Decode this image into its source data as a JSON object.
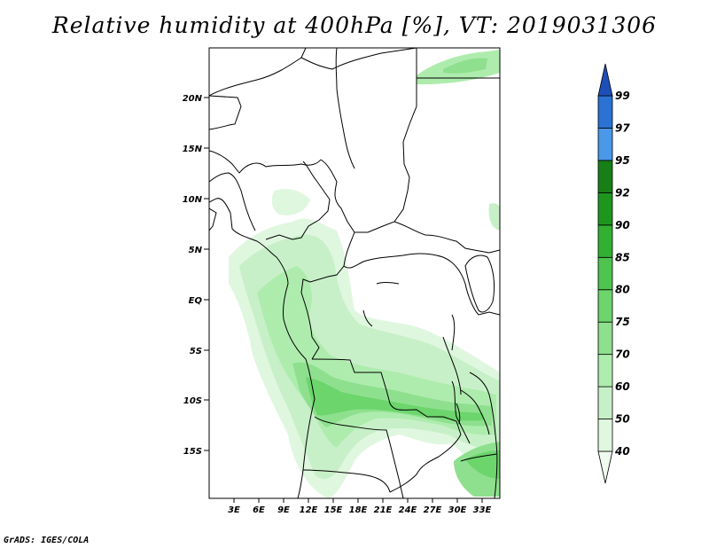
{
  "title": "Relative humidity at 400hPa [%], VT: 2019031306",
  "credit": "GrADS: IGES/COLA",
  "map": {
    "lat_labels": [
      "20N",
      "15N",
      "10N",
      "5N",
      "EQ",
      "5S",
      "10S",
      "15S"
    ],
    "lon_labels": [
      "3E",
      "6E",
      "9E",
      "12E",
      "15E",
      "18E",
      "21E",
      "24E",
      "27E",
      "30E",
      "33E"
    ]
  },
  "colorbar": {
    "labels": [
      "40",
      "50",
      "60",
      "70",
      "75",
      "80",
      "85",
      "90",
      "92",
      "95",
      "97",
      "99"
    ],
    "colors": [
      "#f0fcf0",
      "#dff7df",
      "#c8f0c8",
      "#aeecae",
      "#8ee08e",
      "#6cd56c",
      "#4ec44e",
      "#32b032",
      "#1e961e",
      "#168016",
      "#4a98e8",
      "#2a72d4",
      "#1e4fb8"
    ]
  }
}
